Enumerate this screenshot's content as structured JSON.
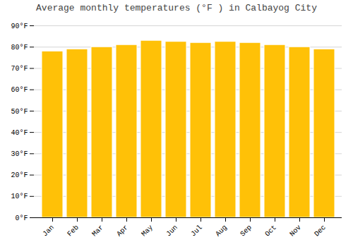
{
  "chart_data": {
    "type": "bar",
    "title": "Average monthly temperatures (°F ) in Calbayog City",
    "categories": [
      "Jan",
      "Feb",
      "Mar",
      "Apr",
      "May",
      "Jun",
      "Jul",
      "Aug",
      "Sep",
      "Oct",
      "Nov",
      "Dec"
    ],
    "values": [
      78,
      79,
      80,
      81,
      83,
      82.5,
      82,
      82.5,
      82,
      81,
      80,
      79
    ],
    "color": "#FFC107",
    "ylim": [
      0,
      90
    ],
    "yticks": [
      {
        "value": 0,
        "label": "0°F"
      },
      {
        "value": 10,
        "label": "10°F"
      },
      {
        "value": 20,
        "label": "20°F"
      },
      {
        "value": 30,
        "label": "30°F"
      },
      {
        "value": 40,
        "label": "40°F"
      },
      {
        "value": 50,
        "label": "50°F"
      },
      {
        "value": 60,
        "label": "60°F"
      },
      {
        "value": 70,
        "label": "70°F"
      },
      {
        "value": 80,
        "label": "80°F"
      },
      {
        "value": 90,
        "label": "90°F"
      }
    ],
    "grid": true
  }
}
